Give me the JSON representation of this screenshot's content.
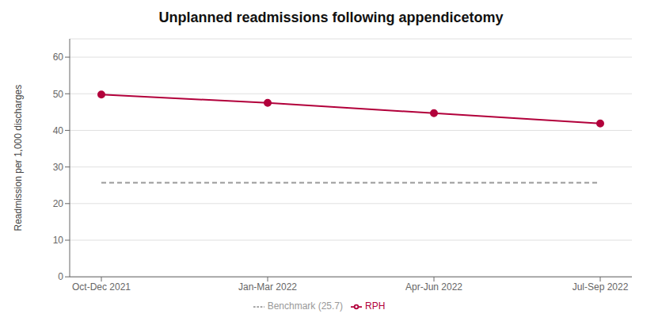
{
  "chart_data": {
    "type": "line",
    "title": "Unplanned readmissions following appendicetomy",
    "ylabel": "Readmission per 1,000 discharges",
    "categories": [
      "Oct-Dec 2021",
      "Jan-Mar 2022",
      "Apr-Jun 2022",
      "Jul-Sep 2022"
    ],
    "series": [
      {
        "name": "RPH",
        "color": "#b2003b",
        "values": [
          49.8,
          47.5,
          44.7,
          41.9
        ],
        "marker": "circle",
        "line_style": "solid"
      },
      {
        "name": "Benchmark (25.7)",
        "color": "#999999",
        "values": [
          25.7,
          25.7,
          25.7,
          25.7
        ],
        "marker": "none",
        "line_style": "dashed"
      }
    ],
    "ylim": [
      0,
      65
    ],
    "yticks": [
      0,
      10,
      20,
      30,
      40,
      50,
      60
    ],
    "grid": true,
    "legend": "bottom"
  }
}
